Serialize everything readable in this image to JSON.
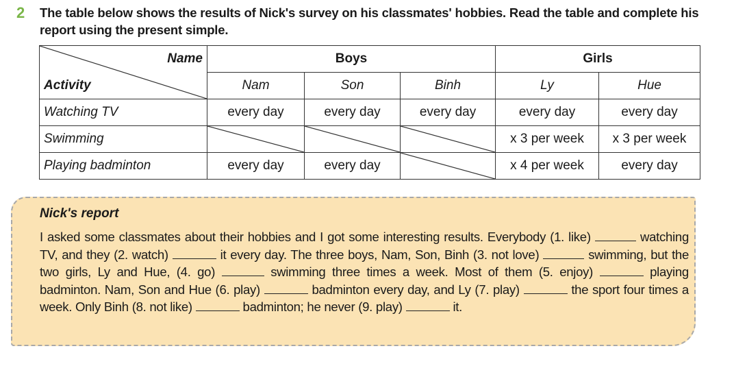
{
  "task": {
    "number": "2",
    "instruction": "The table below shows the results of Nick's survey on his classmates' hobbies. Read the table and complete his report using the present simple."
  },
  "table": {
    "corner_top": "Name",
    "corner_bottom": "Activity",
    "groups": [
      "Boys",
      "Girls"
    ],
    "names": [
      "Nam",
      "Son",
      "Binh",
      "Ly",
      "Hue"
    ],
    "rows": [
      {
        "activity": "Watching TV",
        "cells": [
          "every day",
          "every day",
          "every day",
          "every day",
          "every day"
        ]
      },
      {
        "activity": "Swimming",
        "cells": [
          "",
          "",
          "",
          "x 3 per week",
          "x 3 per week"
        ]
      },
      {
        "activity": "Playing badminton",
        "cells": [
          "every day",
          "every day",
          "",
          "x 4 per week",
          "every day"
        ]
      }
    ]
  },
  "report": {
    "title": "Nick's report",
    "segments": [
      "I asked some classmates about their hobbies and I got some interesting results. Everybody (1. like)",
      "watching TV, and they (2. watch)",
      "it every day. The three boys, Nam, Son, Binh (3. not love)",
      "swimming, but the two girls, Ly and Hue, (4. go)",
      "swimming three times a week. Most of them (5. enjoy)",
      "playing badminton. Nam, Son and Hue (6. play)",
      "badminton every day, and Ly (7. play)",
      "the sport four times a week. Only Binh (8. not like)",
      "badminton; he never (9. play)",
      "it."
    ]
  }
}
